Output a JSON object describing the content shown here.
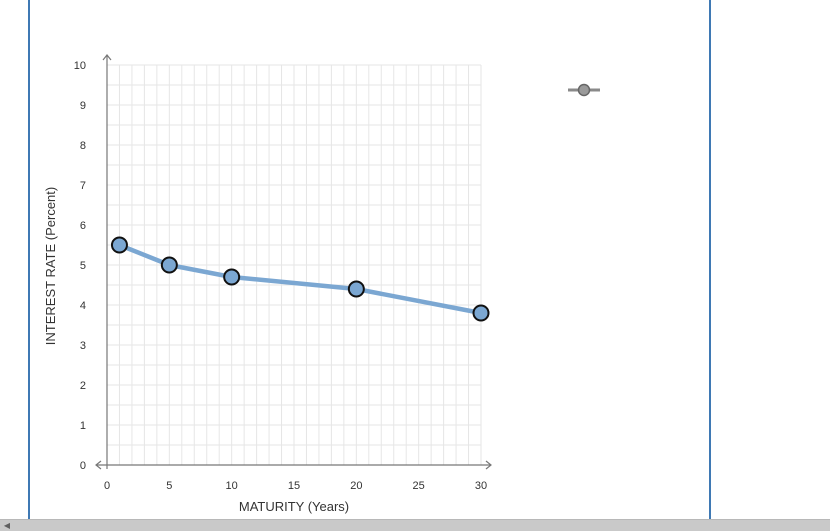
{
  "chart_data": {
    "type": "line",
    "xlabel": "MATURITY (Years)",
    "ylabel": "INTEREST RATE (Percent)",
    "xlim": [
      0,
      30
    ],
    "ylim": [
      0,
      10
    ],
    "xticks": [
      0,
      5,
      10,
      15,
      20,
      25,
      30
    ],
    "yticks": [
      0,
      1,
      2,
      3,
      4,
      5,
      6,
      7,
      8,
      9,
      10
    ],
    "grid": true,
    "series": [
      {
        "x": [
          1,
          5,
          10,
          20,
          30
        ],
        "y": [
          5.5,
          5.0,
          4.7,
          4.4,
          3.8
        ]
      }
    ],
    "line_color": "#7ba7d2",
    "marker_fill": "#7ba7d2",
    "marker_stroke": "#111111",
    "grid_color": "#e6e6e6",
    "axis_color": "#777777"
  },
  "legend_tool": {
    "icon": "line-tool-icon",
    "color": "#8a8a8a"
  },
  "scrollbar": {
    "left_arrow": "◀"
  }
}
